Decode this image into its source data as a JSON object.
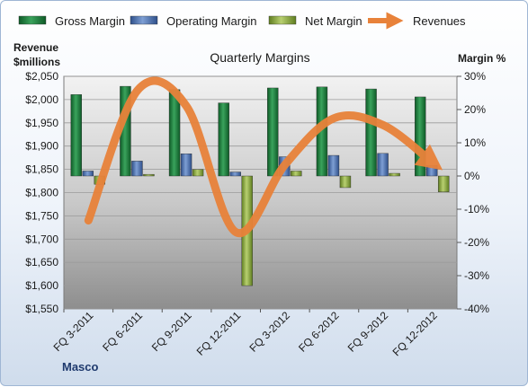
{
  "chart_data": {
    "type": "bar",
    "title": "Quarterly Margins",
    "company": "Masco",
    "left_axis_title": [
      "Revenue",
      "$millions"
    ],
    "right_axis_title": "Margin %",
    "left_ticks": [
      "$1,550",
      "$1,600",
      "$1,650",
      "$1,700",
      "$1,750",
      "$1,800",
      "$1,850",
      "$1,900",
      "$1,950",
      "$2,000",
      "$2,050"
    ],
    "right_ticks": [
      "-40%",
      "-30%",
      "-20%",
      "-10%",
      "0%",
      "10%",
      "20%",
      "30%"
    ],
    "left_ylim": [
      1550,
      2050
    ],
    "right_ylim": [
      -40,
      30
    ],
    "categories": [
      "FQ 3-2011",
      "FQ 6-2011",
      "FQ 9-2011",
      "FQ 12-2011",
      "FQ 3-2012",
      "FQ 6-2012",
      "FQ 9-2012",
      "FQ 12-2012"
    ],
    "legend_position": "top",
    "series": [
      {
        "name": "Gross Margin",
        "type": "bar",
        "axis": "right",
        "color": "#1e7b3c",
        "values": [
          24.5,
          27.0,
          26.0,
          22.0,
          26.5,
          26.8,
          26.2,
          23.8
        ]
      },
      {
        "name": "Operating Margin",
        "type": "bar",
        "axis": "right",
        "color": "#4a6fae",
        "values": [
          1.5,
          4.5,
          6.7,
          1.2,
          5.8,
          6.2,
          6.8,
          3.2
        ]
      },
      {
        "name": "Net Margin",
        "type": "bar",
        "axis": "right",
        "color": "#8aaa3c",
        "values": [
          -2.5,
          0.5,
          2.0,
          -33.0,
          1.5,
          -3.5,
          0.8,
          -4.8
        ]
      },
      {
        "name": "Revenues",
        "type": "line",
        "axis": "left",
        "color": "#e8823a",
        "values": [
          1740,
          2020,
          1985,
          1715,
          1860,
          1960,
          1945,
          1865
        ]
      }
    ]
  }
}
